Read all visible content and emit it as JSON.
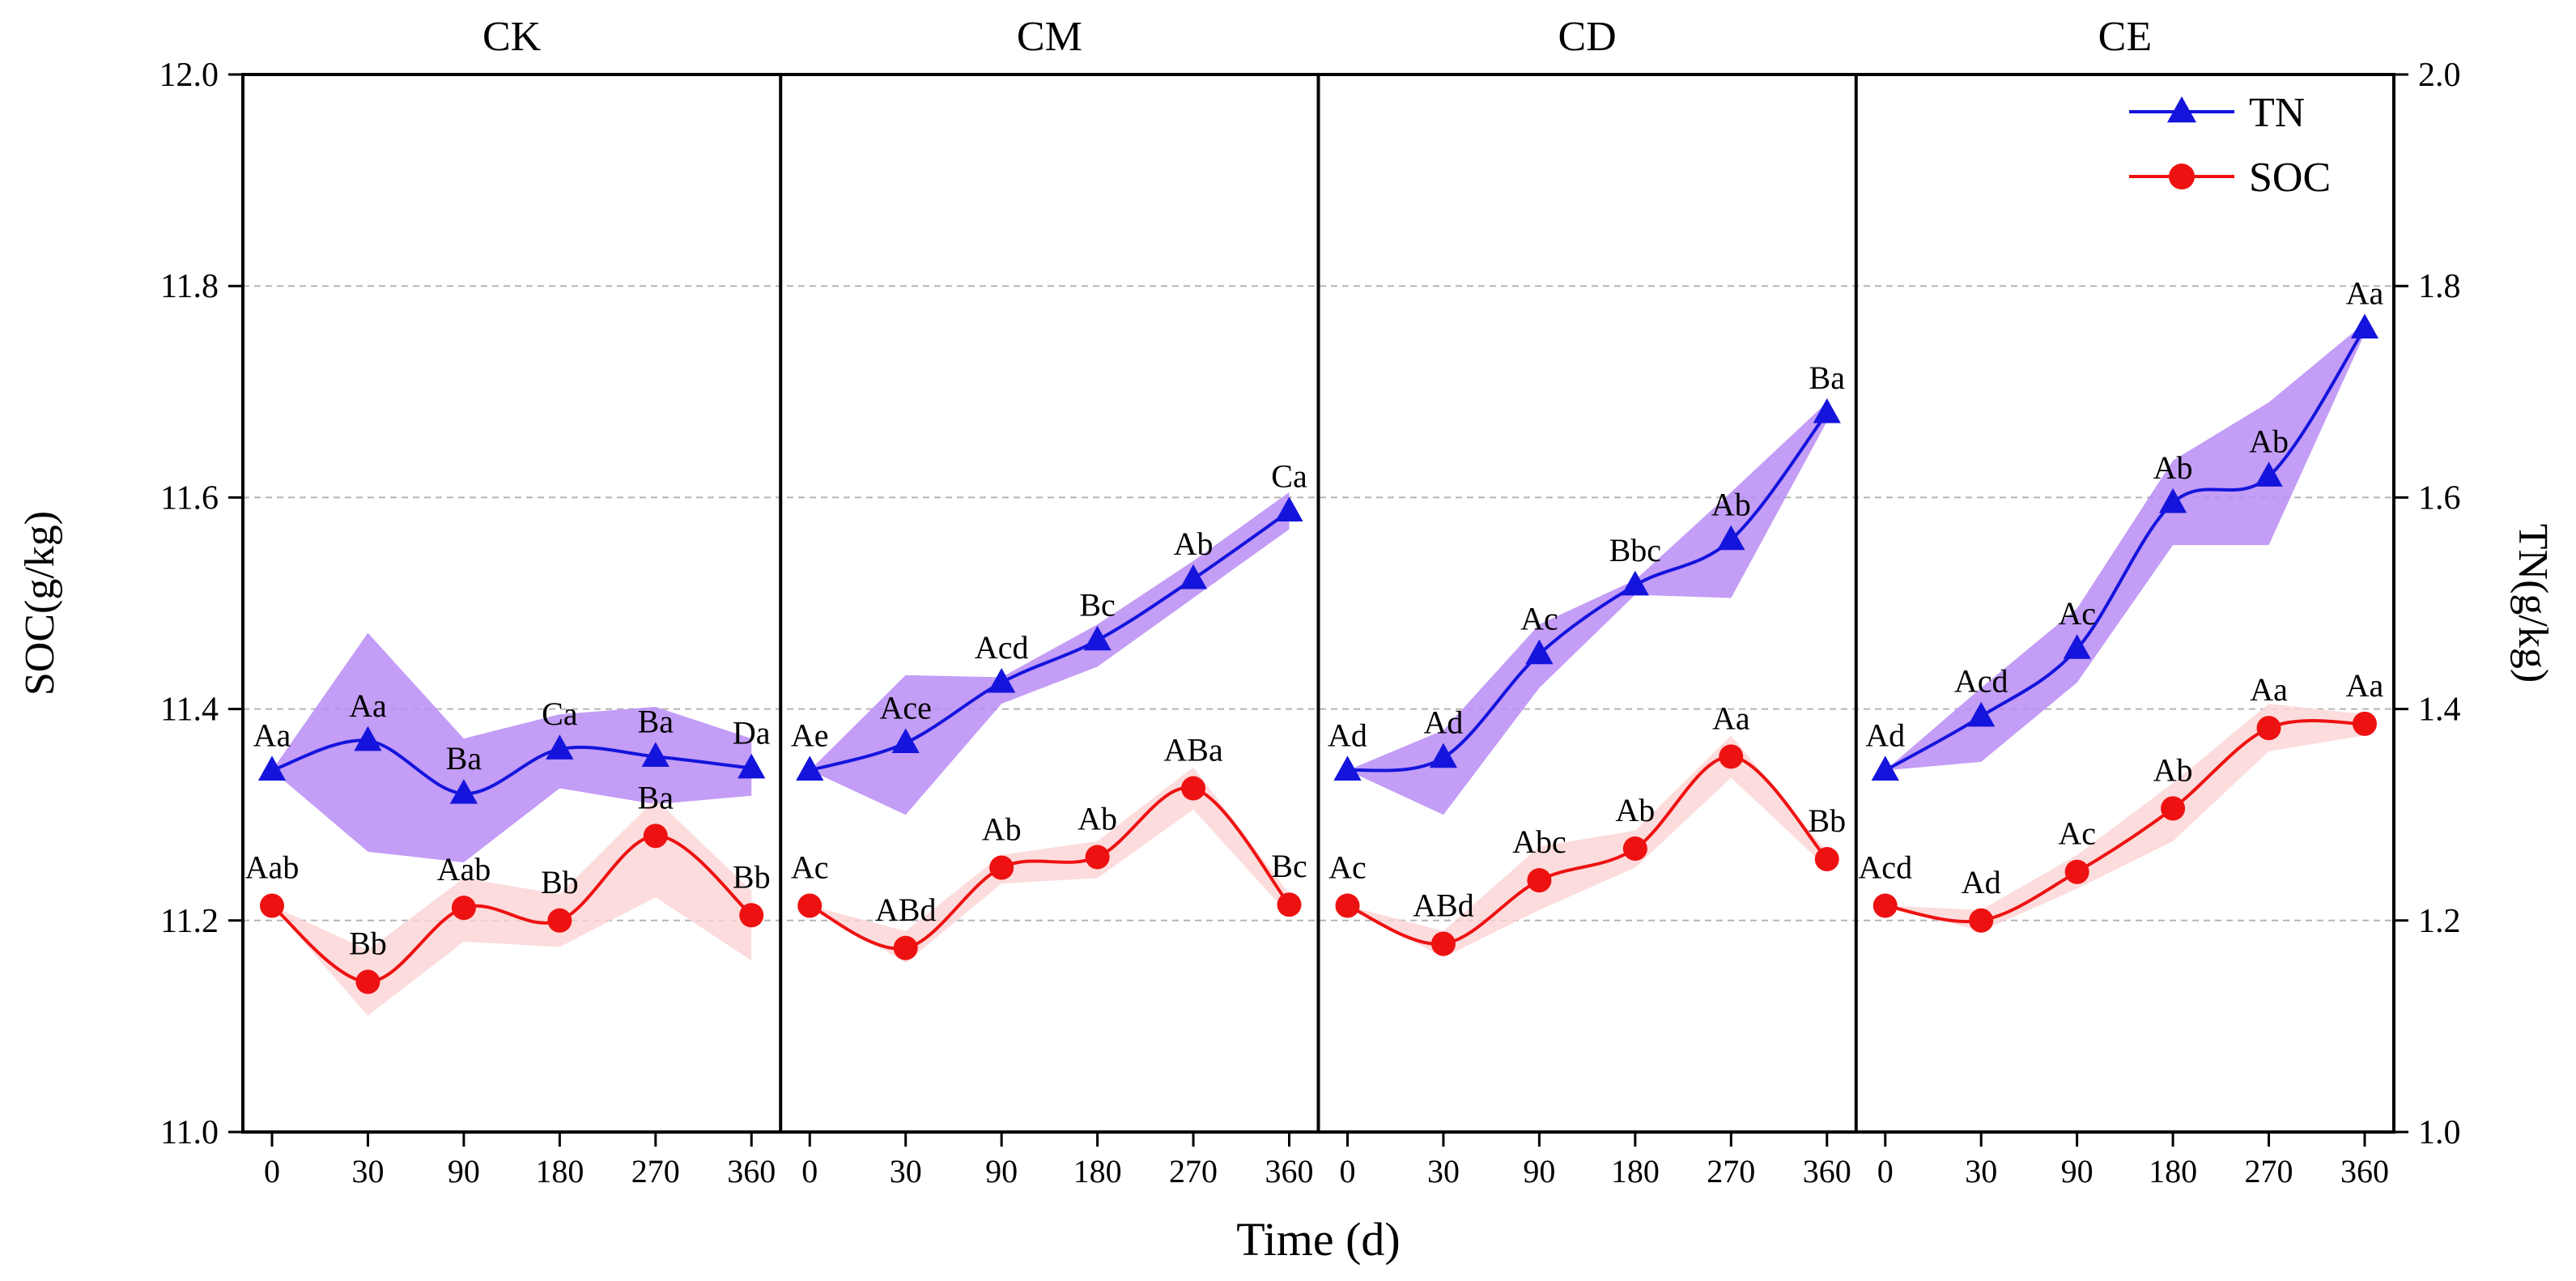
{
  "chart_data": {
    "type": "line",
    "x_label": "Time (d)",
    "left_axis": {
      "label": "SOC(g/kg)",
      "min": 11.0,
      "max": 12.0,
      "ticks": [
        "11.0",
        "11.2",
        "11.4",
        "11.6",
        "11.8",
        "12.0"
      ]
    },
    "right_axis": {
      "label": "TN(g/kg)",
      "min": 1.0,
      "max": 2.0,
      "ticks": [
        "1.0",
        "1.2",
        "1.4",
        "1.6",
        "1.8",
        "2.0"
      ]
    },
    "x_categories": [
      "0",
      "30",
      "90",
      "180",
      "270",
      "360"
    ],
    "grid": "dashed horizontal",
    "legend": [
      {
        "name": "TN",
        "color": "#1414dc",
        "marker": "triangle",
        "band_color": "#b98cf5"
      },
      {
        "name": "SOC",
        "color": "#ee1111",
        "marker": "circle",
        "band_color": "#fbd3d3"
      }
    ],
    "panels": [
      {
        "title": "CK",
        "tn": [
          1.342,
          1.37,
          1.32,
          1.362,
          1.355,
          1.344
        ],
        "tn_low": [
          1.342,
          1.265,
          1.255,
          1.325,
          1.31,
          1.318
        ],
        "tn_high": [
          1.342,
          1.472,
          1.372,
          1.395,
          1.402,
          1.372
        ],
        "tn_labels": [
          "Aa",
          "Aa",
          "Ba",
          "Ca",
          "Ba",
          "Da"
        ],
        "soc": [
          11.214,
          11.142,
          11.212,
          11.2,
          11.28,
          11.205
        ],
        "soc_low": [
          11.214,
          11.11,
          11.18,
          11.175,
          11.222,
          11.162
        ],
        "soc_high": [
          11.214,
          11.172,
          11.24,
          11.225,
          11.315,
          11.228
        ],
        "soc_labels": [
          "Aab",
          "Bb",
          "Aab",
          "Bb",
          "Ba",
          "Bb"
        ]
      },
      {
        "title": "CM",
        "tn": [
          1.342,
          1.368,
          1.425,
          1.465,
          1.523,
          1.587
        ],
        "tn_low": [
          1.342,
          1.3,
          1.405,
          1.44,
          1.505,
          1.57
        ],
        "tn_high": [
          1.342,
          1.432,
          1.43,
          1.48,
          1.54,
          1.605
        ],
        "tn_labels": [
          "Ae",
          "Ace",
          "Acd",
          "Bc",
          "Ab",
          "Ca"
        ],
        "soc": [
          11.214,
          11.174,
          11.25,
          11.26,
          11.325,
          11.215
        ],
        "soc_low": [
          11.214,
          11.16,
          11.235,
          11.24,
          11.305,
          11.205
        ],
        "soc_high": [
          11.214,
          11.19,
          11.262,
          11.275,
          11.345,
          11.225
        ],
        "soc_labels": [
          "Ac",
          "ABd",
          "Ab",
          "Ab",
          "ABa",
          "Bc"
        ]
      },
      {
        "title": "CD",
        "tn": [
          1.342,
          1.354,
          1.452,
          1.517,
          1.56,
          1.68
        ],
        "tn_low": [
          1.342,
          1.3,
          1.42,
          1.508,
          1.505,
          1.672
        ],
        "tn_high": [
          1.342,
          1.38,
          1.48,
          1.522,
          1.605,
          1.69
        ],
        "tn_labels": [
          "Ad",
          "Ad",
          "Ac",
          "Bbc",
          "Ab",
          "Ba"
        ],
        "soc": [
          11.214,
          11.178,
          11.238,
          11.268,
          11.355,
          11.258
        ],
        "soc_low": [
          11.214,
          11.165,
          11.21,
          11.25,
          11.335,
          11.25
        ],
        "soc_high": [
          11.214,
          11.19,
          11.27,
          11.285,
          11.375,
          11.265
        ],
        "soc_labels": [
          "Ac",
          "ABd",
          "Abc",
          "Ab",
          "Aa",
          "Bb"
        ]
      },
      {
        "title": "CE",
        "tn": [
          1.342,
          1.393,
          1.457,
          1.595,
          1.62,
          1.76
        ],
        "tn_low": [
          1.342,
          1.35,
          1.425,
          1.555,
          1.555,
          1.755
        ],
        "tn_high": [
          1.342,
          1.42,
          1.495,
          1.635,
          1.69,
          1.765
        ],
        "tn_labels": [
          "Ad",
          "Acd",
          "Ac",
          "Ab",
          "Ab",
          "Aa"
        ],
        "soc": [
          11.214,
          11.2,
          11.246,
          11.306,
          11.382,
          11.386
        ],
        "soc_low": [
          11.214,
          11.19,
          11.23,
          11.275,
          11.36,
          11.375
        ],
        "soc_high": [
          11.214,
          11.21,
          11.262,
          11.33,
          11.405,
          11.395
        ],
        "soc_labels": [
          "Acd",
          "Ad",
          "Ac",
          "Ab",
          "Aa",
          "Aa"
        ]
      }
    ]
  }
}
